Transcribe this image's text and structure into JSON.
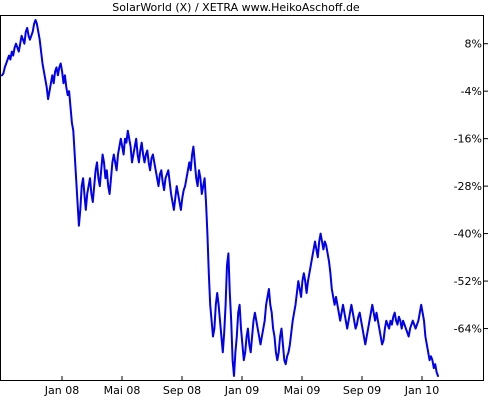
{
  "chart_data": {
    "type": "line",
    "title": "SolarWorld (X) / XETRA www.HeikoAschoff.de",
    "xlabel": "",
    "ylabel": "",
    "x_ticks": [
      "Jan 08",
      "Mai 08",
      "Sep 08",
      "Jan 09",
      "Mai 09",
      "Sep 09",
      "Jan 10"
    ],
    "y_ticks": [
      8,
      -4,
      -16,
      -28,
      -40,
      -52,
      -64
    ],
    "y_tick_labels": [
      "8%",
      "-4%",
      "-16%",
      "-28%",
      "-40%",
      "-52%",
      "-64%"
    ],
    "ylim": [
      -77,
      15
    ],
    "y_axis_position": "right",
    "grid": false,
    "legend": "none",
    "line_color": "#0000ee",
    "series": [
      {
        "values": [
          0,
          0.5,
          2,
          3,
          4,
          5,
          4,
          6,
          5,
          7,
          8,
          7,
          6,
          8,
          10,
          9,
          8,
          11,
          12,
          10,
          9,
          10,
          11,
          13,
          14,
          13,
          11,
          9,
          6,
          3,
          1,
          -1,
          -3,
          -6,
          -4,
          -2,
          0,
          -2,
          1,
          2,
          0,
          2,
          3,
          1,
          -2,
          0,
          -3,
          -5,
          -4,
          -8,
          -12,
          -14,
          -20,
          -26,
          -32,
          -38,
          -34,
          -28,
          -26,
          -30,
          -34,
          -30,
          -28,
          -26,
          -30,
          -32,
          -28,
          -24,
          -22,
          -26,
          -28,
          -24,
          -20,
          -22,
          -26,
          -24,
          -28,
          -30,
          -26,
          -22,
          -20,
          -22,
          -24,
          -20,
          -18,
          -16,
          -18,
          -20,
          -16,
          -17,
          -14,
          -16,
          -18,
          -22,
          -20,
          -18,
          -16,
          -20,
          -22,
          -19,
          -17,
          -20,
          -22,
          -20,
          -19,
          -22,
          -24,
          -21,
          -20,
          -22,
          -24,
          -26,
          -28,
          -25,
          -24,
          -27,
          -29,
          -26,
          -25,
          -24,
          -27,
          -30,
          -32,
          -34,
          -31,
          -28,
          -30,
          -32,
          -34,
          -31,
          -29,
          -28,
          -26,
          -24,
          -22,
          -24,
          -20,
          -18,
          -22,
          -26,
          -28,
          -24,
          -26,
          -30,
          -28,
          -26,
          -32,
          -40,
          -50,
          -58,
          -62,
          -66,
          -64,
          -58,
          -55,
          -58,
          -62,
          -66,
          -70,
          -65,
          -58,
          -48,
          -45,
          -55,
          -62,
          -72,
          -76,
          -70,
          -66,
          -60,
          -58,
          -64,
          -68,
          -72,
          -70,
          -66,
          -64,
          -68,
          -70,
          -66,
          -62,
          -60,
          -62,
          -64,
          -66,
          -68,
          -66,
          -64,
          -62,
          -58,
          -56,
          -54,
          -58,
          -60,
          -64,
          -66,
          -70,
          -72,
          -70,
          -66,
          -64,
          -68,
          -72,
          -73,
          -71,
          -70,
          -68,
          -65,
          -62,
          -60,
          -58,
          -55,
          -52,
          -54,
          -56,
          -52,
          -50,
          -52,
          -55,
          -52,
          -50,
          -48,
          -46,
          -44,
          -42,
          -44,
          -46,
          -42,
          -40,
          -42,
          -44,
          -42,
          -43,
          -45,
          -47,
          -50,
          -54,
          -56,
          -58,
          -56,
          -58,
          -60,
          -62,
          -60,
          -58,
          -60,
          -62,
          -64,
          -62,
          -60,
          -58,
          -60,
          -62,
          -64,
          -63,
          -61,
          -60,
          -62,
          -64,
          -66,
          -68,
          -66,
          -64,
          -62,
          -60,
          -58,
          -60,
          -62,
          -60,
          -62,
          -64,
          -66,
          -68,
          -67,
          -64,
          -62,
          -63,
          -64,
          -62,
          -63,
          -61,
          -60,
          -62,
          -63,
          -61,
          -62,
          -64,
          -62,
          -63,
          -64,
          -65,
          -66,
          -64,
          -63,
          -62,
          -63,
          -64,
          -63,
          -62,
          -60,
          -58,
          -60,
          -62,
          -66,
          -68,
          -70,
          -72,
          -71,
          -72,
          -74,
          -73,
          -75,
          -76
        ]
      }
    ]
  }
}
